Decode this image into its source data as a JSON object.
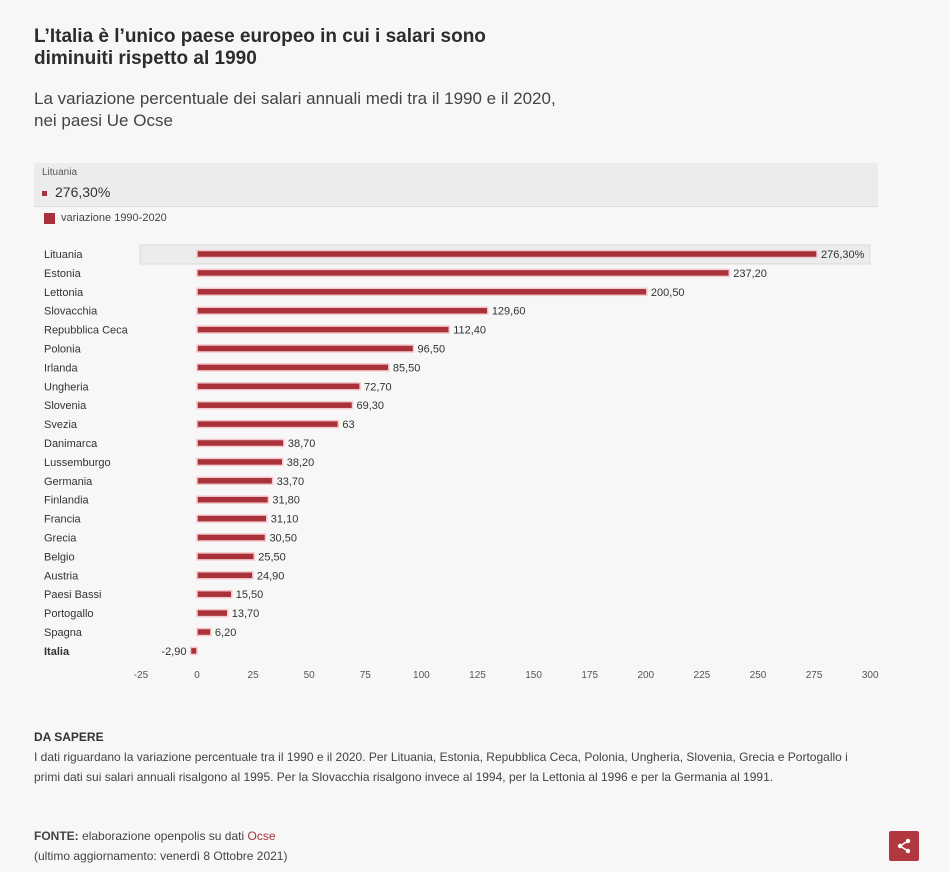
{
  "header": {
    "title": "L’Italia è l’unico paese europeo in cui i salari sono diminuiti rispetto al 1990",
    "subtitle": "La variazione percentuale dei salari annuali medi tra il 1990 e il 2020, nei paesi Ue Ocse"
  },
  "tooltip": {
    "name": "Lituania",
    "value": "276,30%"
  },
  "colors": {
    "bar": "#a8313a",
    "highlight": "#ececec",
    "share_button": "#b3373f"
  },
  "chart_data": {
    "type": "bar",
    "orientation": "horizontal",
    "categories": [
      "Lituania",
      "Estonia",
      "Lettonia",
      "Slovacchia",
      "Repubblica Ceca",
      "Polonia",
      "Irlanda",
      "Ungheria",
      "Slovenia",
      "Svezia",
      "Danimarca",
      "Lussemburgo",
      "Germania",
      "Finlandia",
      "Francia",
      "Grecia",
      "Belgio",
      "Austria",
      "Paesi Bassi",
      "Portogallo",
      "Spagna",
      "Italia"
    ],
    "series": [
      {
        "name": "variazione 1990-2020",
        "values": [
          276.3,
          237.2,
          200.5,
          129.6,
          112.4,
          96.5,
          85.5,
          72.7,
          69.3,
          63,
          38.7,
          38.2,
          33.7,
          31.8,
          31.1,
          30.5,
          25.5,
          24.9,
          15.5,
          13.7,
          6.2,
          -2.9
        ],
        "labels": [
          "276,30%",
          "237,20",
          "200,50",
          "129,60",
          "112,40",
          "96,50",
          "85,50",
          "72,70",
          "69,30",
          "63",
          "38,70",
          "38,20",
          "33,70",
          "31,80",
          "31,10",
          "30,50",
          "25,50",
          "24,90",
          "15,50",
          "13,70",
          "6,20",
          "-2,90"
        ]
      }
    ],
    "xlim": [
      -25,
      300
    ],
    "xticks": [
      -25,
      0,
      25,
      50,
      75,
      100,
      125,
      150,
      175,
      200,
      225,
      250,
      275,
      300
    ],
    "xtick_labels": [
      "-25",
      "0",
      "25",
      "50",
      "75",
      "100",
      "125",
      "150",
      "175",
      "200",
      "225",
      "250",
      "275",
      "300"
    ],
    "highlighted_category": "Italia",
    "hovered_category": "Lituania",
    "grid": false,
    "legend": "top-left"
  },
  "notes": {
    "heading": "DA SAPERE",
    "text": "I dati riguardano la variazione percentuale tra il 1990 e il 2020. Per Lituania, Estonia, Repubblica Ceca, Polonia, Ungheria, Slovenia, Grecia e Portogallo i primi dati sui salari annuali risalgono al 1995. Per la Slovacchia risalgono invece al 1994, per la Lettonia al 1996 e per la Germania al 1991."
  },
  "source": {
    "label": "FONTE:",
    "text": "elaborazione openpolis su dati",
    "link": "Ocse",
    "updated": "(ultimo aggiornamento: venerdì 8 Ottobre 2021)"
  },
  "share": {
    "icon": "share-icon"
  }
}
